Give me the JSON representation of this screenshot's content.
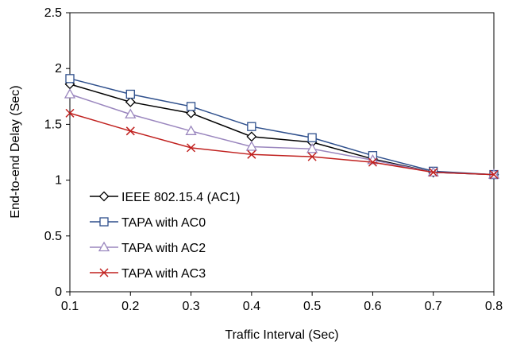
{
  "chart_data": {
    "type": "line",
    "title": "",
    "xlabel": "Traffic Interval (Sec)",
    "ylabel": "End-to-end Delay (Sec)",
    "x": [
      0.1,
      0.2,
      0.3,
      0.4,
      0.5,
      0.6,
      0.7,
      0.8
    ],
    "xlim": [
      0.1,
      0.8
    ],
    "ylim": [
      0,
      2.5
    ],
    "x_ticks": [
      "0.1",
      "0.2",
      "0.3",
      "0.4",
      "0.5",
      "0.6",
      "0.7",
      "0.8"
    ],
    "y_ticks": [
      "0",
      "0.5",
      "1",
      "1.5",
      "2",
      "2.5"
    ],
    "grid": false,
    "legend_position": "bottom-left",
    "series": [
      {
        "name": "IEEE 802.15.4  (AC1)",
        "marker": "diamond",
        "color": "#000000",
        "values": [
          1.86,
          1.7,
          1.6,
          1.39,
          1.34,
          1.19,
          1.07,
          1.05
        ]
      },
      {
        "name": "TAPA with AC0",
        "marker": "square",
        "color": "#2E4F8C",
        "values": [
          1.91,
          1.77,
          1.66,
          1.48,
          1.38,
          1.22,
          1.08,
          1.05
        ]
      },
      {
        "name": "TAPA with AC2",
        "marker": "triangle",
        "color": "#9A86BE",
        "values": [
          1.77,
          1.59,
          1.44,
          1.3,
          1.28,
          1.18,
          1.07,
          1.05
        ]
      },
      {
        "name": "TAPA with AC3",
        "marker": "x",
        "color": "#C0201E",
        "values": [
          1.6,
          1.44,
          1.29,
          1.23,
          1.21,
          1.16,
          1.07,
          1.05
        ]
      }
    ]
  }
}
